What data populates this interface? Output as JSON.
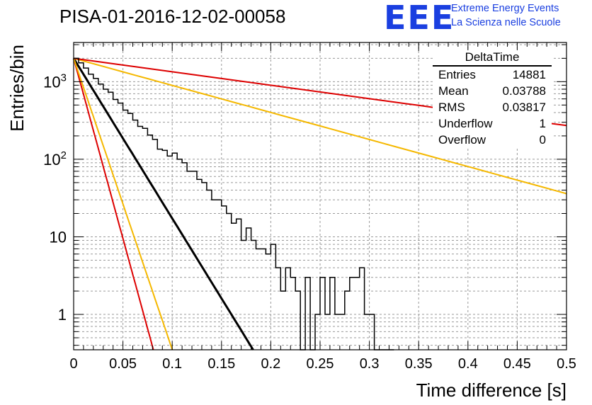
{
  "header": {
    "run_title": "PISA-01-2016-12-02-00058",
    "logo_text": "EEE",
    "logo_line1": "Extreme Energy Events",
    "logo_line2": "La Scienza nelle Scuole",
    "logo_color": "#1a3fe0"
  },
  "stats": {
    "title": "DeltaTime",
    "rows": [
      {
        "label": "Entries",
        "value": "14881"
      },
      {
        "label": "Mean",
        "value": "0.03788"
      },
      {
        "label": "RMS",
        "value": "0.03817"
      },
      {
        "label": "Underflow",
        "value": "1"
      },
      {
        "label": "Overflow",
        "value": "0"
      }
    ]
  },
  "chart_data": {
    "type": "line",
    "xlabel": "Time difference [s]",
    "ylabel": "Entries/bin",
    "xlim": [
      0,
      0.5
    ],
    "ylim": [
      0.35,
      3200
    ],
    "y_scale": "log",
    "grid": true,
    "x_ticks": [
      "0",
      "0.05",
      "0.1",
      "0.15",
      "0.2",
      "0.25",
      "0.3",
      "0.35",
      "0.4",
      "0.45",
      "0.5"
    ],
    "y_ticks": [
      {
        "value": 1,
        "label": "1"
      },
      {
        "value": 10,
        "label": "10"
      },
      {
        "value": 100,
        "label": "10^2"
      },
      {
        "value": 1000,
        "label": "10^3"
      }
    ],
    "histogram": {
      "color": "#000000",
      "bin_width": 0.005,
      "counts": [
        2000,
        1750,
        1500,
        1250,
        1100,
        930,
        800,
        730,
        590,
        530,
        430,
        390,
        320,
        265,
        250,
        205,
        180,
        135,
        130,
        110,
        120,
        100,
        90,
        70,
        70,
        55,
        50,
        40,
        30,
        30,
        25,
        20,
        15,
        17,
        9,
        13,
        9,
        7,
        7,
        6,
        8,
        4,
        2,
        4,
        3,
        2,
        0,
        3,
        0,
        1,
        3,
        1,
        3,
        1,
        1,
        2,
        3,
        3,
        4,
        1,
        1,
        0,
        0,
        0,
        0
      ]
    },
    "fits": [
      {
        "color": "#000000",
        "amplitude": 2000,
        "tau": 0.02105,
        "x_end": 0.33
      },
      {
        "color": "#dd0000",
        "amplitude": 2000,
        "tau": 0.00935,
        "x_end": 0.5
      },
      {
        "color": "#f5b800",
        "amplitude": 2000,
        "tau": 0.01157,
        "x_end": 0.5
      },
      {
        "color": "#f5b800",
        "amplitude": 2000,
        "tau": 0.1245,
        "x_end": 0.5
      },
      {
        "color": "#dd0000",
        "amplitude": 2000,
        "tau": 0.2505,
        "x_end": 0.5
      }
    ]
  }
}
